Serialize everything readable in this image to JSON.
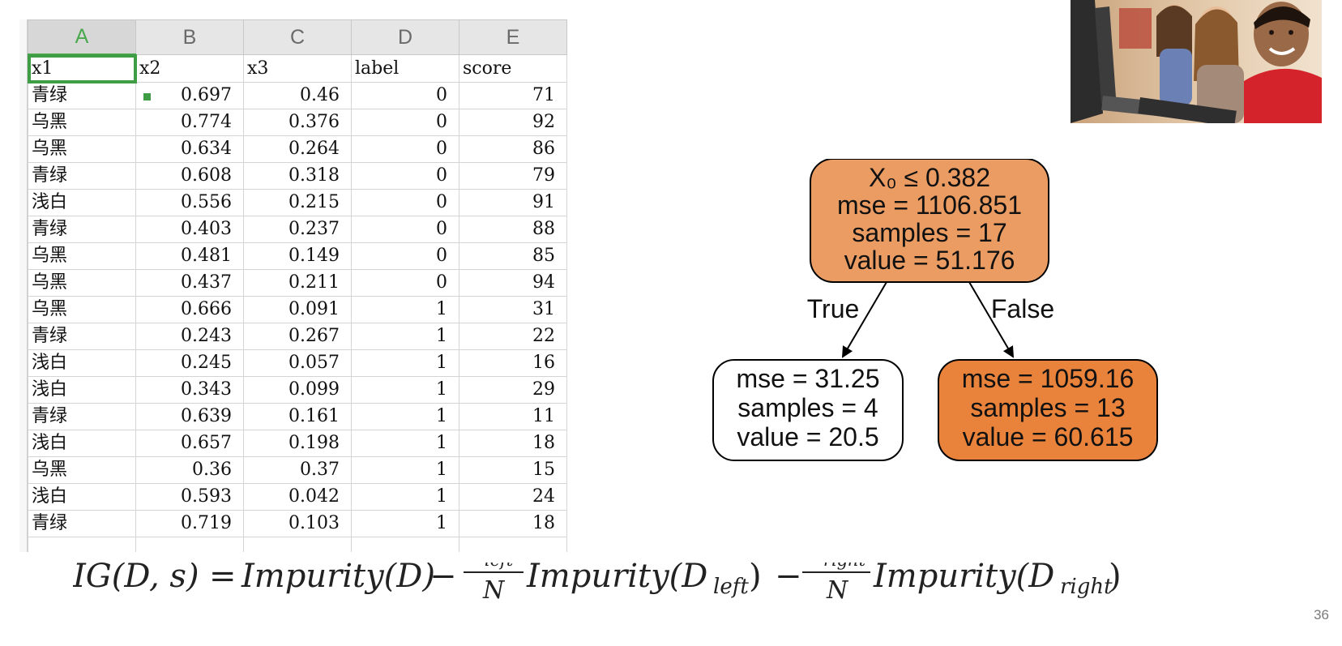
{
  "spreadsheet": {
    "columns": [
      "A",
      "B",
      "C",
      "D",
      "E"
    ],
    "active_column": "A",
    "header_row": [
      "x1",
      "x2",
      "x3",
      "label",
      "score"
    ],
    "rows": [
      [
        "青绿",
        "0.697",
        "0.46",
        "0",
        "71"
      ],
      [
        "乌黑",
        "0.774",
        "0.376",
        "0",
        "92"
      ],
      [
        "乌黑",
        "0.634",
        "0.264",
        "0",
        "86"
      ],
      [
        "青绿",
        "0.608",
        "0.318",
        "0",
        "79"
      ],
      [
        "浅白",
        "0.556",
        "0.215",
        "0",
        "91"
      ],
      [
        "青绿",
        "0.403",
        "0.237",
        "0",
        "88"
      ],
      [
        "乌黑",
        "0.481",
        "0.149",
        "0",
        "85"
      ],
      [
        "乌黑",
        "0.437",
        "0.211",
        "0",
        "94"
      ],
      [
        "乌黑",
        "0.666",
        "0.091",
        "1",
        "31"
      ],
      [
        "青绿",
        "0.243",
        "0.267",
        "1",
        "22"
      ],
      [
        "浅白",
        "0.245",
        "0.057",
        "1",
        "16"
      ],
      [
        "浅白",
        "0.343",
        "0.099",
        "1",
        "29"
      ],
      [
        "青绿",
        "0.639",
        "0.161",
        "1",
        "11"
      ],
      [
        "浅白",
        "0.657",
        "0.198",
        "1",
        "18"
      ],
      [
        "乌黑",
        "0.36",
        "0.37",
        "1",
        "15"
      ],
      [
        "浅白",
        "0.593",
        "0.042",
        "1",
        "24"
      ],
      [
        "青绿",
        "0.719",
        "0.103",
        "1",
        "18"
      ]
    ],
    "selected_cell": "A1",
    "colors": {
      "active_column_text": "#4aa84d",
      "selection": "#3f9e45"
    }
  },
  "tree": {
    "root": {
      "lines": [
        "X₀ ≤ 0.382",
        "mse = 1106.851",
        "samples = 17",
        "value = 51.176"
      ],
      "fill": "#eb9c63"
    },
    "edge_true": "True",
    "edge_false": "False",
    "left": {
      "lines": [
        "mse = 31.25",
        "samples = 4",
        "value = 20.5"
      ],
      "fill": "#ffffff"
    },
    "right": {
      "lines": [
        "mse = 1059.16",
        "samples = 13",
        "value = 60.615"
      ],
      "fill": "#e9823b"
    }
  },
  "formula": {
    "lhs": "IG(D, s)",
    "equals": "=",
    "term1": "Impurity(D)",
    "minus": "−",
    "frac1_num_base": "N",
    "frac1_num_sub": "left",
    "frac1_den": "N",
    "term2_base": "Impurity(D",
    "term2_sub": "left",
    "term2_close": ")",
    "frac2_num_base": "N",
    "frac2_num_sub": "right",
    "frac2_den": "N",
    "term3_base": "Impurity(D",
    "term3_sub": "right",
    "term3_close": ")"
  },
  "photo": {
    "icon": "children-at-computers-photo"
  },
  "page_number": "36"
}
